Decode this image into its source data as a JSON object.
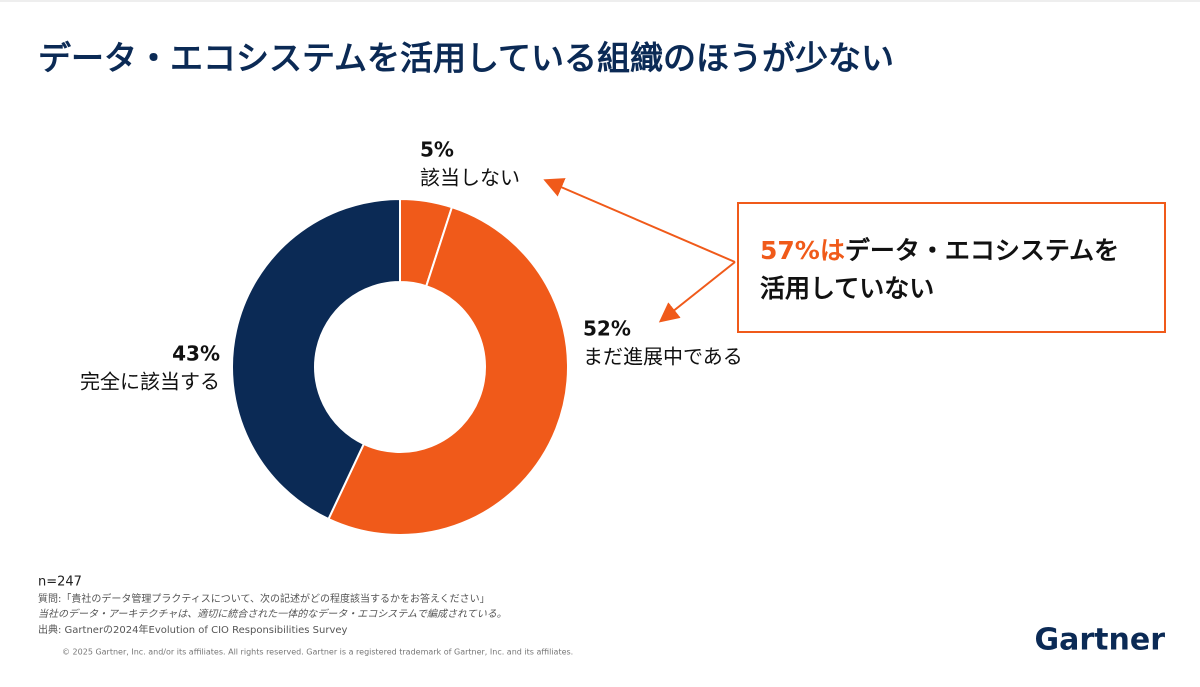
{
  "title": "データ・エコシステムを活用している組織のほうが少ない",
  "chart_data": {
    "type": "donut",
    "categories": [
      "該当しない",
      "まだ進展中である",
      "完全に該当する"
    ],
    "values": [
      5,
      52,
      43
    ],
    "value_labels": [
      "5%",
      "52%",
      "43%"
    ],
    "colors": [
      "#f05a1a",
      "#f05a1a",
      "#0b2a55"
    ]
  },
  "callout": {
    "highlight": "57%は",
    "lines": [
      "データ・エコシステムを",
      "活用していない"
    ]
  },
  "footnotes": {
    "sample": "n=247",
    "question": "質問:「貴社のデータ管理プラクティスについて、次の記述がどの程度該当するかをお答えください」",
    "statement": "当社のデータ・アーキテクチャは、適切に統合された一体的なデータ・エコシステムで編成されている。",
    "source": "出典: Gartnerの2024年Evolution of CIO Responsibilities Survey",
    "copyright": "© 2025 Gartner, Inc. and/or its affiliates. All rights reserved. Gartner is a registered trademark of Gartner, Inc. and its affiliates."
  },
  "logo": "Gartner"
}
